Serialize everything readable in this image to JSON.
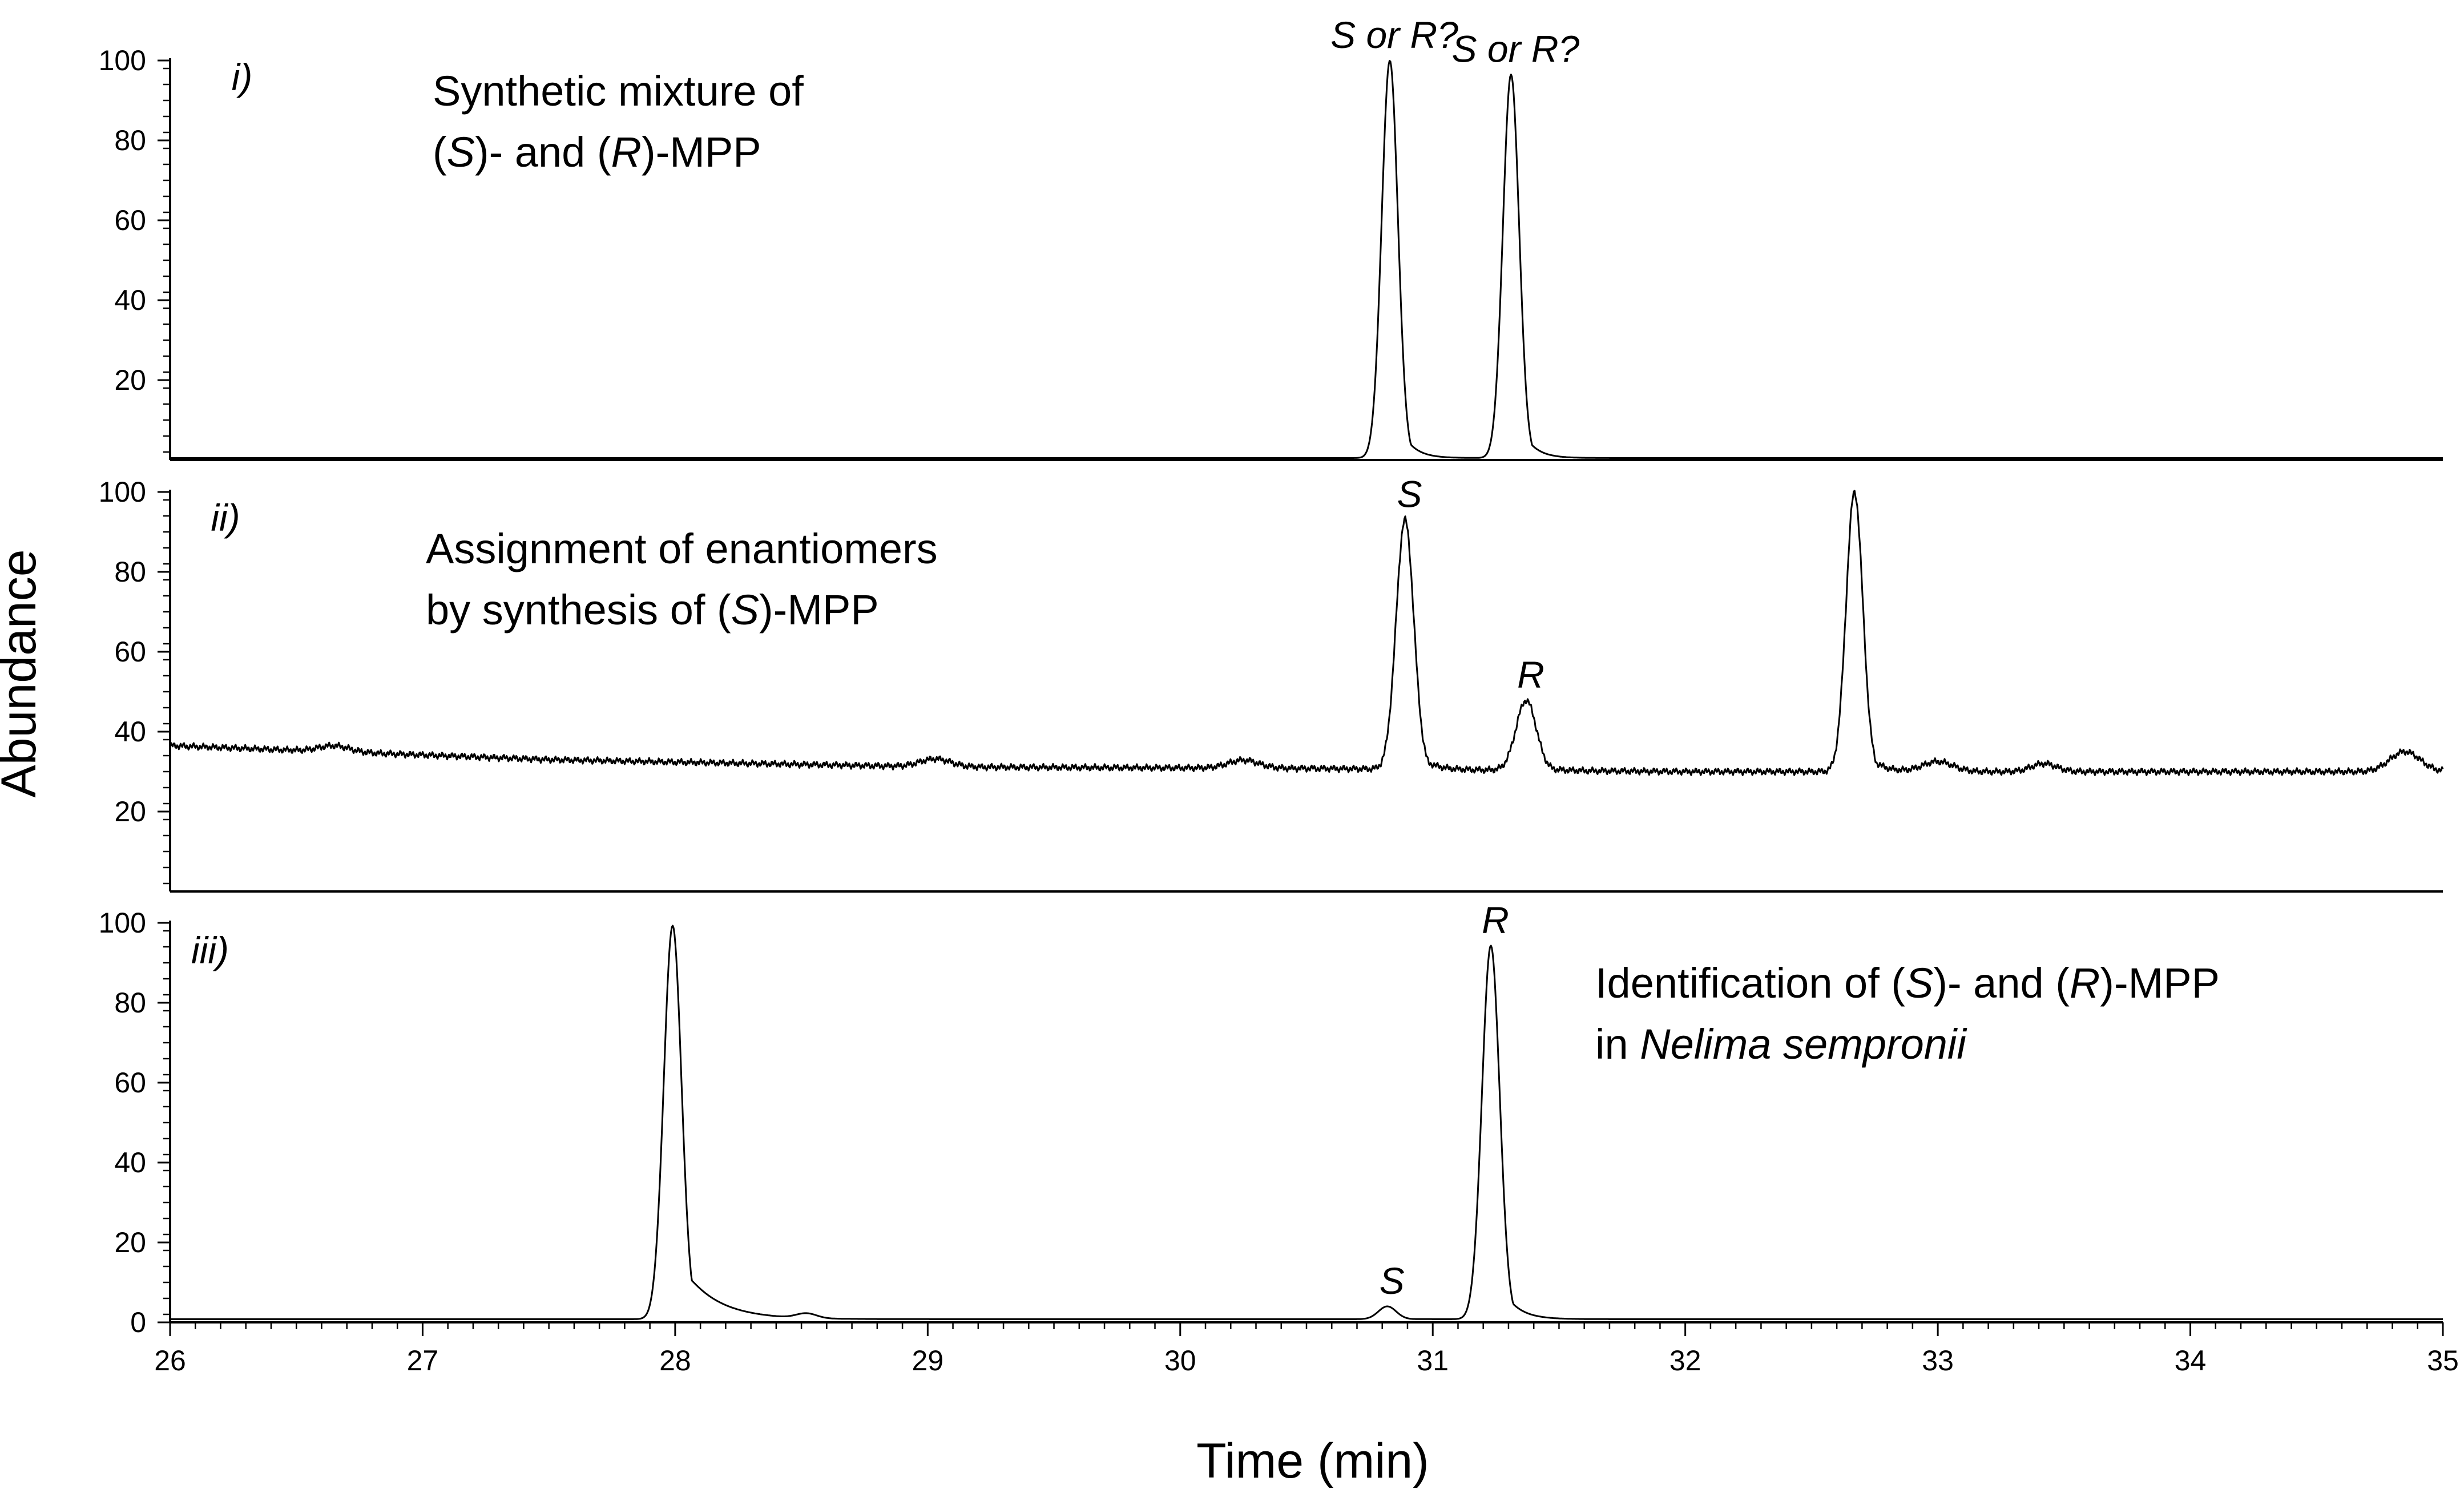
{
  "chart_data": {
    "type": "line",
    "xlabel": "Time (min)",
    "ylabel": "Abundance",
    "xlim": [
      26,
      35
    ],
    "x_ticks": [
      "26",
      "27",
      "28",
      "29",
      "30",
      "31",
      "32",
      "33",
      "34",
      "35"
    ],
    "panels": [
      {
        "panel_label": "i)",
        "description_lines": [
          [
            {
              "t": "Synthetic mixture of"
            }
          ],
          [
            {
              "t": "("
            },
            {
              "t": "S",
              "i": true
            },
            {
              "t": ")- and ("
            },
            {
              "t": "R",
              "i": true
            },
            {
              "t": ")-MPP"
            }
          ]
        ],
        "ylim": [
          0,
          100
        ],
        "y_ticks": [
          "100",
          "80",
          "60",
          "40",
          "20"
        ],
        "baseline": 0.5,
        "drift": [],
        "peaks": [
          {
            "rt": 30.83,
            "height": 99.5,
            "width": 0.032,
            "tail": 0.05,
            "label": [
              {
                "t": "S",
                "i": true
              },
              {
                "t": " or "
              },
              {
                "t": "R",
                "i": true
              },
              {
                "t": "?"
              }
            ]
          },
          {
            "rt": 31.31,
            "height": 96.0,
            "width": 0.032,
            "tail": 0.05,
            "label": [
              {
                "t": "S",
                "i": true
              },
              {
                "t": " or "
              },
              {
                "t": "R",
                "i": true
              },
              {
                "t": "?"
              }
            ]
          }
        ]
      },
      {
        "panel_label": "ii)",
        "description_lines": [
          [
            {
              "t": "Assignment of enantiomers"
            }
          ],
          [
            {
              "t": "by synthesis of ("
            },
            {
              "t": "S",
              "i": true
            },
            {
              "t": ")-MPP"
            }
          ]
        ],
        "ylim": [
          0,
          100
        ],
        "y_ticks": [
          "100",
          "80",
          "60",
          "40",
          "20"
        ],
        "baseline": 30,
        "drift": [
          [
            26,
            36.5
          ],
          [
            27.5,
            33
          ],
          [
            29,
            31.2
          ],
          [
            30.5,
            30.8
          ],
          [
            32,
            30
          ],
          [
            35,
            30
          ]
        ],
        "peaks": [
          {
            "rt": 30.89,
            "height": 62.5,
            "width": 0.035,
            "tail": 0.05,
            "label": [
              {
                "t": "S",
                "i": true
              }
            ]
          },
          {
            "rt": 31.37,
            "height": 17.5,
            "width": 0.04,
            "tail": 0.05,
            "label": [
              {
                "t": "R",
                "i": true
              }
            ]
          },
          {
            "rt": 32.67,
            "height": 70.0,
            "width": 0.033,
            "tail": 0.05
          },
          {
            "rt": 26.65,
            "height": 1.5,
            "width": 0.06,
            "tail": 0.03
          },
          {
            "rt": 29.03,
            "height": 2.0,
            "width": 0.06,
            "tail": 0.03
          },
          {
            "rt": 30.25,
            "height": 2.0,
            "width": 0.06,
            "tail": 0.03
          },
          {
            "rt": 33.0,
            "height": 2.5,
            "width": 0.06,
            "tail": 0.03
          },
          {
            "rt": 33.42,
            "height": 2.0,
            "width": 0.05,
            "tail": 0.03
          },
          {
            "rt": 34.85,
            "height": 5.0,
            "width": 0.06,
            "tail": 0.03
          }
        ]
      },
      {
        "panel_label": "iii)",
        "description_lines": [
          [
            {
              "t": "Identification of ("
            },
            {
              "t": "S",
              "i": true
            },
            {
              "t": ")- and ("
            },
            {
              "t": "R",
              "i": true
            },
            {
              "t": ")-MPP"
            }
          ],
          [
            {
              "t": "in "
            },
            {
              "t": "Nelima sempronii",
              "i": true
            }
          ]
        ],
        "ylim": [
          0,
          100
        ],
        "y_ticks": [
          "100",
          "80",
          "60",
          "40",
          "20",
          "0"
        ],
        "baseline": 0.8,
        "drift": [],
        "peaks": [
          {
            "rt": 27.99,
            "height": 98.5,
            "width": 0.035,
            "tail": 0.13
          },
          {
            "rt": 28.52,
            "height": 1.2,
            "width": 0.04,
            "tail": 0.03
          },
          {
            "rt": 30.82,
            "height": 3.2,
            "width": 0.035,
            "tail": 0.04,
            "label": [
              {
                "t": "S",
                "i": true
              }
            ]
          },
          {
            "rt": 31.23,
            "height": 93.5,
            "width": 0.035,
            "tail": 0.06,
            "label": [
              {
                "t": "R",
                "i": true
              }
            ]
          }
        ]
      }
    ]
  }
}
